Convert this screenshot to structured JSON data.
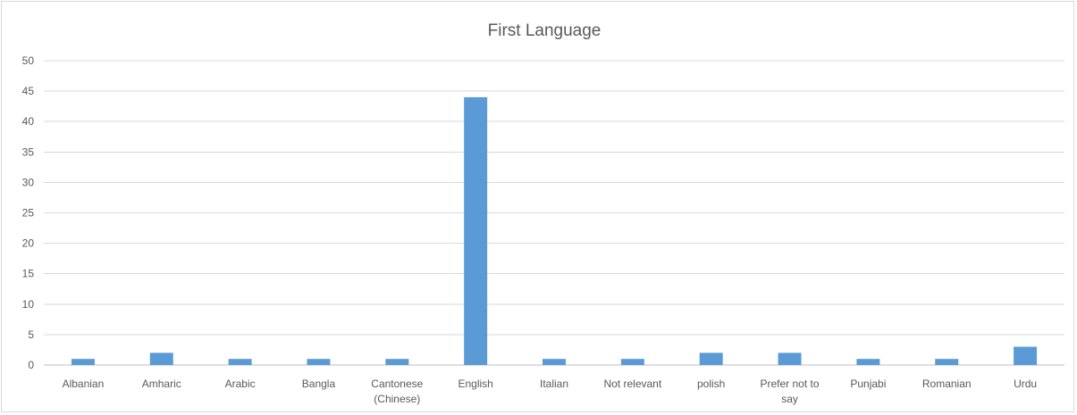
{
  "chart_data": {
    "type": "bar",
    "title": "First Language",
    "xlabel": "",
    "ylabel": "",
    "categories": [
      [
        "Albanian"
      ],
      [
        "Amharic"
      ],
      [
        "Arabic"
      ],
      [
        "Bangla"
      ],
      [
        "Cantonese",
        "(Chinese)"
      ],
      [
        "English"
      ],
      [
        "Italian"
      ],
      [
        "Not relevant"
      ],
      [
        "polish"
      ],
      [
        "Prefer not to",
        "say"
      ],
      [
        "Punjabi"
      ],
      [
        "Romanian"
      ],
      [
        "Urdu"
      ]
    ],
    "values": [
      1,
      2,
      1,
      1,
      1,
      44,
      1,
      1,
      2,
      2,
      1,
      1,
      3
    ],
    "ylim": [
      0,
      50
    ],
    "yticks": [
      0,
      5,
      10,
      15,
      20,
      25,
      30,
      35,
      40,
      45,
      50
    ],
    "grid": true,
    "legend": false,
    "colors": {
      "bar": "#5b9bd5",
      "grid": "#d9d9d9",
      "axis": "#bfbfbf",
      "text": "#595959"
    }
  }
}
